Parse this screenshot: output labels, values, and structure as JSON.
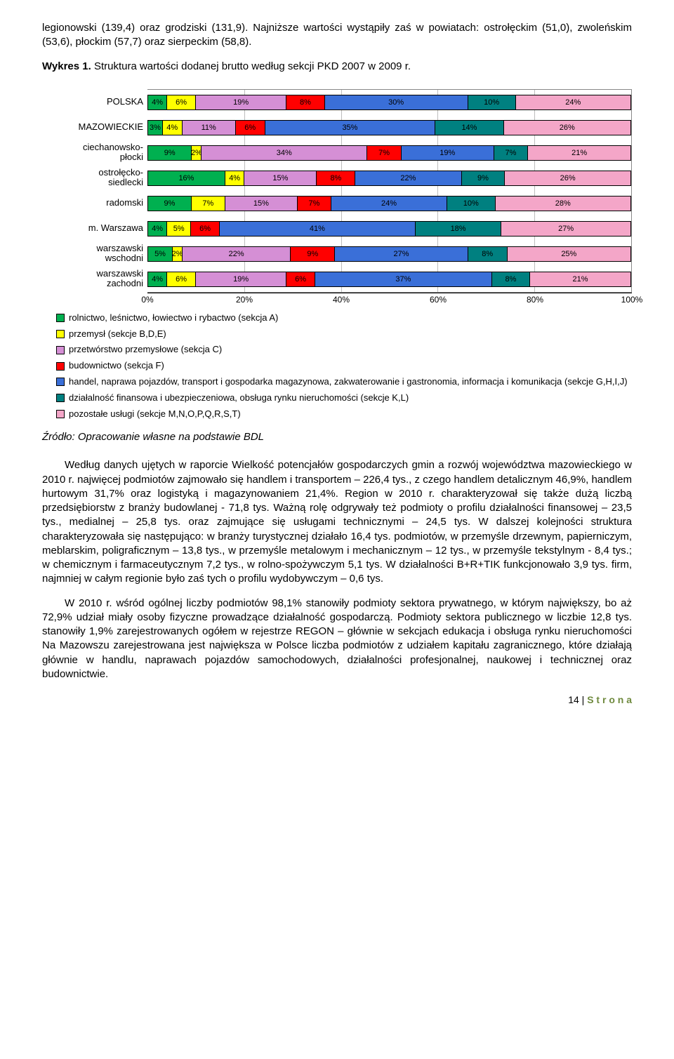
{
  "intro": "legionowski (139,4) oraz grodziski (131,9). Najniższe wartości wystąpiły zaś w powiatach: ostrołęckim (51,0), zwoleńskim (53,6), płockim (57,7) oraz sierpeckim (58,8).",
  "chart_title_prefix": "Wykres 1.",
  "chart_title_rest": " Struktura wartości dodanej brutto według sekcji PKD 2007 w 2009 r.",
  "chart": {
    "type": "stacked-bar-horizontal",
    "categories": [
      "POLSKA",
      "MAZOWIECKIE",
      "ciechanowsko-\npłocki",
      "ostrołęcko-\nsiedlecki",
      "radomski",
      "m. Warszawa",
      "warszawski\nwschodni",
      "warszawski\nzachodni"
    ],
    "series_colors": [
      "#00b050",
      "#ffff00",
      "#d58fd5",
      "#ff0000",
      "#3a6fd8",
      "#008080",
      "#f4a6c8"
    ],
    "rows": [
      [
        4,
        6,
        19,
        8,
        30,
        10,
        24
      ],
      [
        3,
        4,
        11,
        6,
        35,
        14,
        26
      ],
      [
        9,
        2,
        34,
        7,
        19,
        7,
        21
      ],
      [
        16,
        4,
        15,
        8,
        22,
        9,
        26
      ],
      [
        9,
        7,
        15,
        7,
        24,
        10,
        28
      ],
      [
        4,
        5,
        6,
        41,
        18,
        27
      ],
      [
        5,
        2,
        22,
        9,
        27,
        8,
        25
      ],
      [
        4,
        6,
        19,
        6,
        37,
        8,
        21
      ]
    ],
    "row_color_idx": [
      [
        0,
        1,
        2,
        3,
        4,
        5,
        6
      ],
      [
        0,
        1,
        2,
        3,
        4,
        5,
        6
      ],
      [
        0,
        1,
        2,
        3,
        4,
        5,
        6
      ],
      [
        0,
        1,
        2,
        3,
        4,
        5,
        6
      ],
      [
        0,
        1,
        2,
        3,
        4,
        5,
        6
      ],
      [
        0,
        1,
        3,
        4,
        5,
        6
      ],
      [
        0,
        1,
        2,
        3,
        4,
        5,
        6
      ],
      [
        0,
        1,
        2,
        3,
        4,
        5,
        6
      ]
    ],
    "x_ticks": [
      "0%",
      "20%",
      "40%",
      "60%",
      "80%",
      "100%"
    ],
    "x_tick_pos": [
      0,
      20,
      40,
      60,
      80,
      100
    ],
    "grid_pos": [
      20,
      40,
      60,
      80
    ],
    "legend": [
      "rolnictwo, leśnictwo, łowiectwo i rybactwo (sekcja A)",
      "przemysł (sekcje B,D,E)",
      "przetwórstwo przemysłowe (sekcja C)",
      "budownictwo (sekcja F)",
      "handel, naprawa pojazdów, transport i gospodarka magazynowa, zakwaterowanie i gastronomia, informacja i komunikacja  (sekcje G,H,I,J)",
      "działalność finansowa i ubezpieczeniowa, obsługa rynku nieruchomości (sekcje K,L)",
      "pozostałe usługi (sekcje M,N,O,P,Q,R,S,T)"
    ]
  },
  "source": "Źródło: Opracowanie własne na podstawie BDL",
  "body1": "Według danych ujętych w raporcie Wielkość potencjałów gospodarczych gmin a rozwój województwa mazowieckiego w 2010 r. najwięcej podmiotów zajmowało się handlem i transportem – 226,4 tys., z czego handlem detalicznym 46,9%, handlem hurtowym 31,7% oraz logistyką i magazynowaniem 21,4%. Region w 2010 r. charakteryzował się także dużą liczbą przedsiębiorstw z branży budowlanej - 71,8 tys. Ważną rolę odgrywały też podmioty o profilu działalności finansowej – 23,5 tys., medialnej – 25,8 tys. oraz zajmujące się usługami technicznymi – 24,5 tys. W dalszej kolejności struktura charakteryzowała się następująco: w branży turystycznej działało 16,4 tys. podmiotów, w przemyśle drzewnym, papierniczym, meblarskim, poligraficznym – 13,8 tys., w przemyśle metalowym i mechanicznym – 12 tys., w przemyśle tekstylnym - 8,4 tys.; w chemicznym i farmaceutycznym 7,2 tys., w rolno-spożywczym 5,1 tys. W działalności B+R+TIK funkcjonowało 3,9 tys. firm, najmniej w całym regionie było zaś tych o profilu wydobywczym – 0,6 tys.",
  "body2": "W 2010 r. wśród ogólnej liczby podmiotów 98,1% stanowiły podmioty sektora prywatnego, w którym największy, bo aż 72,9% udział miały osoby fizyczne prowadzące działalność gospodarczą. Podmioty sektora publicznego w liczbie 12,8 tys. stanowiły 1,9% zarejestrowanych ogółem w rejestrze REGON – głównie w sekcjach edukacja i obsługa rynku nieruchomości Na Mazowszu zarejestrowana jest największa w Polsce liczba podmiotów z udziałem kapitału zagranicznego, które działają głównie w handlu, naprawach pojazdów samochodowych, działalności profesjonalnej, naukowej i technicznej oraz budownictwie.",
  "page_label_prefix": "14 | ",
  "page_label_suffix": "S t r o n a"
}
